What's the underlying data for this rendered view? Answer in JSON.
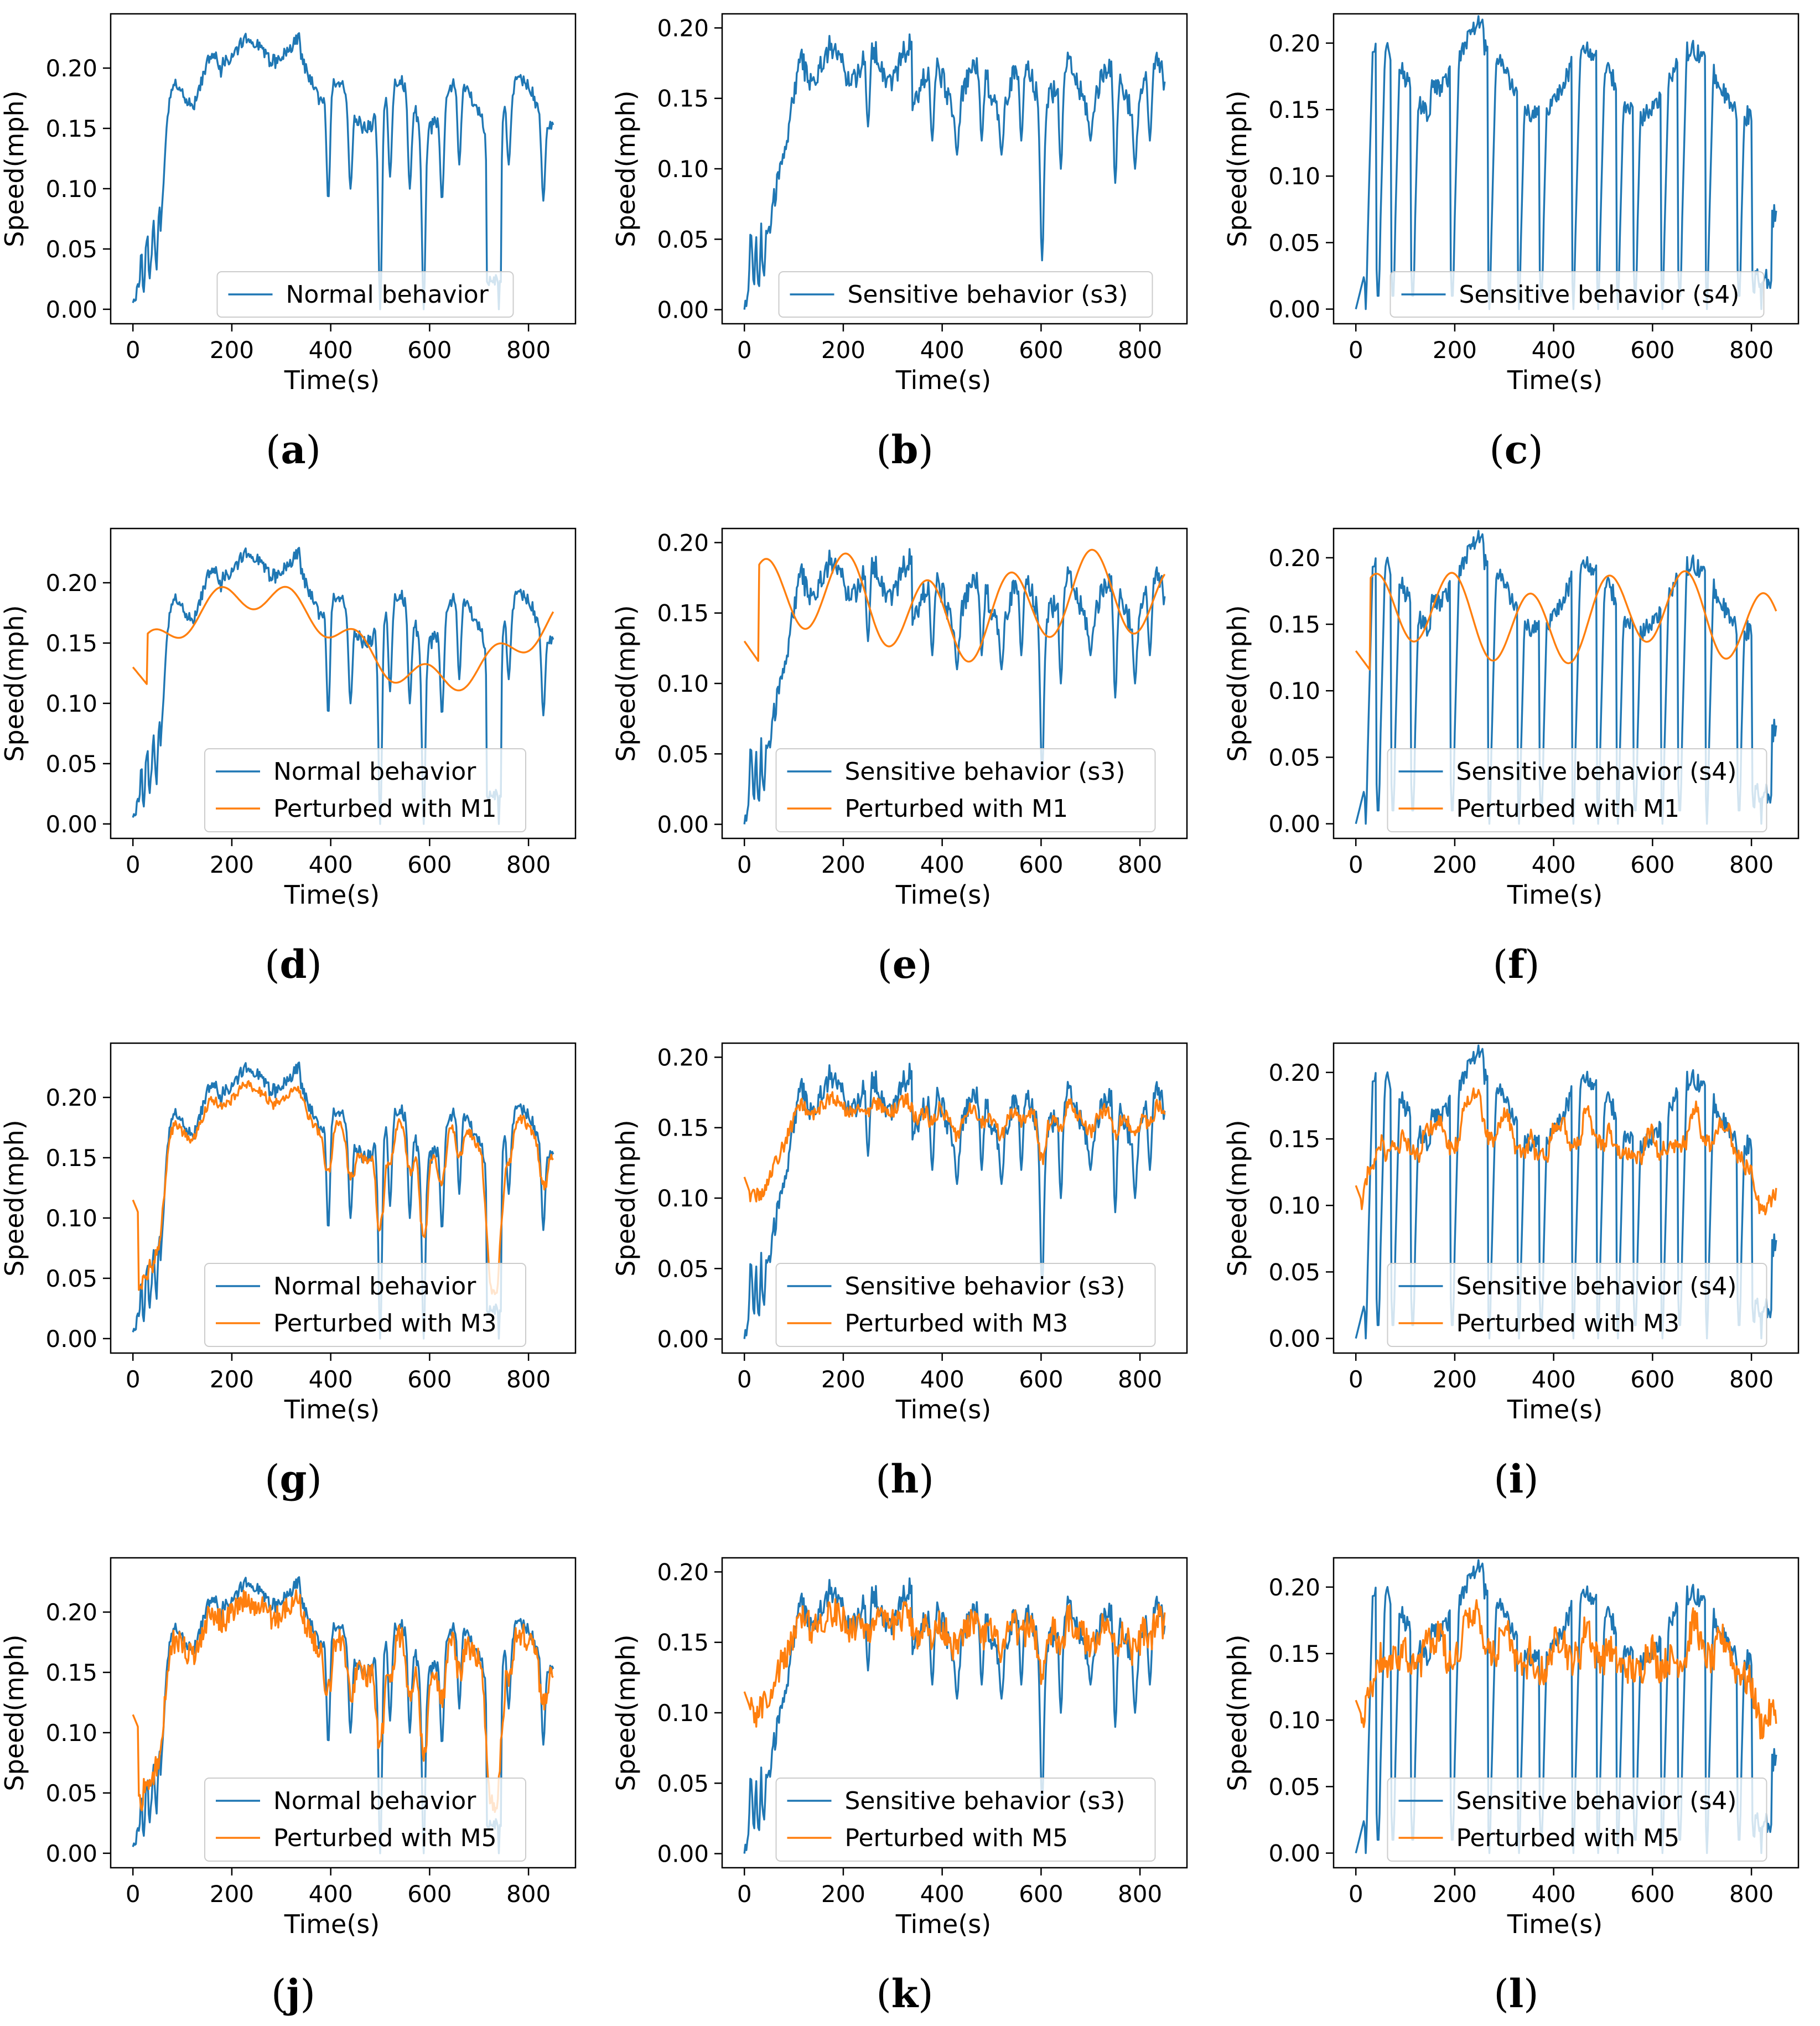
{
  "figure": {
    "colors": {
      "blue": "#1f77b4",
      "orange": "#ff7f0e",
      "axis": "#000000"
    }
  },
  "chart_data": [
    {
      "id": "a",
      "caption_letter": "a",
      "type": "line",
      "xlabel": "Time(s)",
      "ylabel": "Speed(mph)",
      "xlim": [
        -45,
        895
      ],
      "ylim": [
        -0.012,
        0.245
      ],
      "xticks": [
        0,
        200,
        400,
        600,
        800
      ],
      "yticks": [
        0.0,
        0.05,
        0.1,
        0.15,
        0.2
      ],
      "ytick_labels": [
        "0.00",
        "0.05",
        "0.10",
        "0.15",
        "0.20"
      ],
      "legend": [
        "Normal behavior"
      ],
      "series": [
        {
          "name": "Normal behavior",
          "color": "#1f77b4",
          "shape": "normal",
          "seed": 11,
          "x_range": [
            0,
            850
          ]
        }
      ]
    },
    {
      "id": "b",
      "caption_letter": "b",
      "type": "line",
      "xlabel": "Time(s)",
      "ylabel": "Speed(mph)",
      "xlim": [
        -45,
        895
      ],
      "ylim": [
        -0.01,
        0.21
      ],
      "xticks": [
        0,
        200,
        400,
        600,
        800
      ],
      "yticks": [
        0.0,
        0.05,
        0.1,
        0.15,
        0.2
      ],
      "ytick_labels": [
        "0.00",
        "0.05",
        "0.10",
        "0.15",
        "0.20"
      ],
      "legend": [
        "Sensitive behavior (s3)"
      ],
      "series": [
        {
          "name": "Sensitive behavior (s3)",
          "color": "#1f77b4",
          "shape": "s3",
          "seed": 23,
          "x_range": [
            0,
            850
          ]
        }
      ]
    },
    {
      "id": "c",
      "caption_letter": "c",
      "type": "line",
      "xlabel": "Time(s)",
      "ylabel": "Speed(mph)",
      "xlim": [
        -45,
        895
      ],
      "ylim": [
        -0.011,
        0.222
      ],
      "xticks": [
        0,
        200,
        400,
        600,
        800
      ],
      "yticks": [
        0.0,
        0.05,
        0.1,
        0.15,
        0.2
      ],
      "ytick_labels": [
        "0.00",
        "0.05",
        "0.10",
        "0.15",
        "0.20"
      ],
      "legend": [
        "Sensitive behavior (s4)"
      ],
      "series": [
        {
          "name": "Sensitive behavior (s4)",
          "color": "#1f77b4",
          "shape": "s4",
          "seed": 37,
          "x_range": [
            0,
            850
          ]
        }
      ]
    },
    {
      "id": "d",
      "caption_letter": "d",
      "type": "line",
      "xlabel": "Time(s)",
      "ylabel": "Speed(mph)",
      "xlim": [
        -45,
        895
      ],
      "ylim": [
        -0.012,
        0.245
      ],
      "xticks": [
        0,
        200,
        400,
        600,
        800
      ],
      "yticks": [
        0.0,
        0.05,
        0.1,
        0.15,
        0.2
      ],
      "ytick_labels": [
        "0.00",
        "0.05",
        "0.10",
        "0.15",
        "0.20"
      ],
      "legend": [
        "Normal behavior",
        "Perturbed with M1"
      ],
      "series": [
        {
          "name": "Normal behavior",
          "color": "#1f77b4",
          "shape": "normal",
          "seed": 11,
          "x_range": [
            0,
            850
          ]
        },
        {
          "name": "Perturbed with M1",
          "color": "#ff7f0e",
          "shape": "m1_normal",
          "seed": 5,
          "x_range": [
            0,
            850
          ]
        }
      ]
    },
    {
      "id": "e",
      "caption_letter": "e",
      "type": "line",
      "xlabel": "Time(s)",
      "ylabel": "Speed(mph)",
      "xlim": [
        -45,
        895
      ],
      "ylim": [
        -0.01,
        0.21
      ],
      "xticks": [
        0,
        200,
        400,
        600,
        800
      ],
      "yticks": [
        0.0,
        0.05,
        0.1,
        0.15,
        0.2
      ],
      "ytick_labels": [
        "0.00",
        "0.05",
        "0.10",
        "0.15",
        "0.20"
      ],
      "legend": [
        "Sensitive behavior (s3)",
        "Perturbed with M1"
      ],
      "series": [
        {
          "name": "Sensitive behavior (s3)",
          "color": "#1f77b4",
          "shape": "s3",
          "seed": 23,
          "x_range": [
            0,
            850
          ]
        },
        {
          "name": "Perturbed with M1",
          "color": "#ff7f0e",
          "shape": "m1_s3",
          "seed": 7,
          "x_range": [
            0,
            850
          ]
        }
      ]
    },
    {
      "id": "f",
      "caption_letter": "f",
      "type": "line",
      "xlabel": "Time(s)",
      "ylabel": "Speed(mph)",
      "xlim": [
        -45,
        895
      ],
      "ylim": [
        -0.011,
        0.222
      ],
      "xticks": [
        0,
        200,
        400,
        600,
        800
      ],
      "yticks": [
        0.0,
        0.05,
        0.1,
        0.15,
        0.2
      ],
      "ytick_labels": [
        "0.00",
        "0.05",
        "0.10",
        "0.15",
        "0.20"
      ],
      "legend": [
        "Sensitive behavior (s4)",
        "Perturbed with M1"
      ],
      "series": [
        {
          "name": "Sensitive behavior (s4)",
          "color": "#1f77b4",
          "shape": "s4",
          "seed": 37,
          "x_range": [
            0,
            850
          ]
        },
        {
          "name": "Perturbed with M1",
          "color": "#ff7f0e",
          "shape": "m1_s4",
          "seed": 9,
          "x_range": [
            0,
            850
          ]
        }
      ]
    },
    {
      "id": "g",
      "caption_letter": "g",
      "type": "line",
      "xlabel": "Time(s)",
      "ylabel": "Speed(mph)",
      "xlim": [
        -45,
        895
      ],
      "ylim": [
        -0.012,
        0.245
      ],
      "xticks": [
        0,
        200,
        400,
        600,
        800
      ],
      "yticks": [
        0.0,
        0.05,
        0.1,
        0.15,
        0.2
      ],
      "ytick_labels": [
        "0.00",
        "0.05",
        "0.10",
        "0.15",
        "0.20"
      ],
      "legend": [
        "Normal behavior",
        "Perturbed with M3"
      ],
      "series": [
        {
          "name": "Normal behavior",
          "color": "#1f77b4",
          "shape": "normal",
          "seed": 11,
          "x_range": [
            0,
            850
          ]
        },
        {
          "name": "Perturbed with M3",
          "color": "#ff7f0e",
          "shape": "m3_normal",
          "seed": 13,
          "x_range": [
            0,
            850
          ]
        }
      ]
    },
    {
      "id": "h",
      "caption_letter": "h",
      "type": "line",
      "xlabel": "Time(s)",
      "ylabel": "Speed(mph)",
      "xlim": [
        -45,
        895
      ],
      "ylim": [
        -0.01,
        0.21
      ],
      "xticks": [
        0,
        200,
        400,
        600,
        800
      ],
      "yticks": [
        0.0,
        0.05,
        0.1,
        0.15,
        0.2
      ],
      "ytick_labels": [
        "0.00",
        "0.05",
        "0.10",
        "0.15",
        "0.20"
      ],
      "legend": [
        "Sensitive behavior (s3)",
        "Perturbed with M3"
      ],
      "series": [
        {
          "name": "Sensitive behavior (s3)",
          "color": "#1f77b4",
          "shape": "s3",
          "seed": 23,
          "x_range": [
            0,
            850
          ]
        },
        {
          "name": "Perturbed with M3",
          "color": "#ff7f0e",
          "shape": "m3_s3",
          "seed": 17,
          "x_range": [
            0,
            850
          ]
        }
      ]
    },
    {
      "id": "i",
      "caption_letter": "i",
      "type": "line",
      "xlabel": "Time(s)",
      "ylabel": "Speed(mph)",
      "xlim": [
        -45,
        895
      ],
      "ylim": [
        -0.011,
        0.222
      ],
      "xticks": [
        0,
        200,
        400,
        600,
        800
      ],
      "yticks": [
        0.0,
        0.05,
        0.1,
        0.15,
        0.2
      ],
      "ytick_labels": [
        "0.00",
        "0.05",
        "0.10",
        "0.15",
        "0.20"
      ],
      "legend": [
        "Sensitive behavior (s4)",
        "Perturbed with M3"
      ],
      "series": [
        {
          "name": "Sensitive behavior (s4)",
          "color": "#1f77b4",
          "shape": "s4",
          "seed": 37,
          "x_range": [
            0,
            850
          ]
        },
        {
          "name": "Perturbed with M3",
          "color": "#ff7f0e",
          "shape": "m3_s4",
          "seed": 19,
          "x_range": [
            0,
            850
          ]
        }
      ]
    },
    {
      "id": "j",
      "caption_letter": "j",
      "type": "line",
      "xlabel": "Time(s)",
      "ylabel": "Speed(mph)",
      "xlim": [
        -45,
        895
      ],
      "ylim": [
        -0.012,
        0.245
      ],
      "xticks": [
        0,
        200,
        400,
        600,
        800
      ],
      "yticks": [
        0.0,
        0.05,
        0.1,
        0.15,
        0.2
      ],
      "ytick_labels": [
        "0.00",
        "0.05",
        "0.10",
        "0.15",
        "0.20"
      ],
      "legend": [
        "Normal behavior",
        "Perturbed with M5"
      ],
      "series": [
        {
          "name": "Normal behavior",
          "color": "#1f77b4",
          "shape": "normal",
          "seed": 11,
          "x_range": [
            0,
            850
          ]
        },
        {
          "name": "Perturbed with M5",
          "color": "#ff7f0e",
          "shape": "m5_normal",
          "seed": 29,
          "x_range": [
            0,
            850
          ]
        }
      ]
    },
    {
      "id": "k",
      "caption_letter": "k",
      "type": "line",
      "xlabel": "Time(s)",
      "ylabel": "Speed(mph)",
      "xlim": [
        -45,
        895
      ],
      "ylim": [
        -0.01,
        0.21
      ],
      "xticks": [
        0,
        200,
        400,
        600,
        800
      ],
      "yticks": [
        0.0,
        0.05,
        0.1,
        0.15,
        0.2
      ],
      "ytick_labels": [
        "0.00",
        "0.05",
        "0.10",
        "0.15",
        "0.20"
      ],
      "legend": [
        "Sensitive behavior (s3)",
        "Perturbed with M5"
      ],
      "series": [
        {
          "name": "Sensitive behavior (s3)",
          "color": "#1f77b4",
          "shape": "s3",
          "seed": 23,
          "x_range": [
            0,
            850
          ]
        },
        {
          "name": "Perturbed with M5",
          "color": "#ff7f0e",
          "shape": "m5_s3",
          "seed": 31,
          "x_range": [
            0,
            850
          ]
        }
      ]
    },
    {
      "id": "l",
      "caption_letter": "l",
      "type": "line",
      "xlabel": "Time(s)",
      "ylabel": "Speed(mph)",
      "xlim": [
        -45,
        895
      ],
      "ylim": [
        -0.011,
        0.222
      ],
      "xticks": [
        0,
        200,
        400,
        600,
        800
      ],
      "yticks": [
        0.0,
        0.05,
        0.1,
        0.15,
        0.2
      ],
      "ytick_labels": [
        "0.00",
        "0.05",
        "0.10",
        "0.15",
        "0.20"
      ],
      "legend": [
        "Sensitive behavior (s4)",
        "Perturbed with M5"
      ],
      "series": [
        {
          "name": "Sensitive behavior (s4)",
          "color": "#1f77b4",
          "shape": "s4",
          "seed": 37,
          "x_range": [
            0,
            850
          ]
        },
        {
          "name": "Perturbed with M5",
          "color": "#ff7f0e",
          "shape": "m5_s4",
          "seed": 41,
          "x_range": [
            0,
            850
          ]
        }
      ]
    }
  ]
}
